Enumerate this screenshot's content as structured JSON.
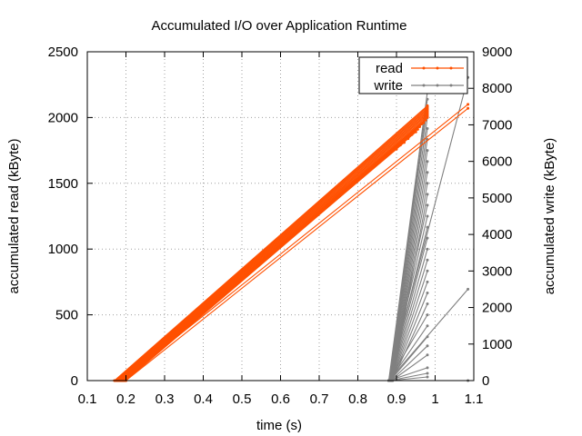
{
  "chart_data": {
    "type": "line",
    "title": "Accumulated I/O over Application Runtime",
    "xlabel": "time (s)",
    "ylabel": "accumulated read  (kByte)",
    "y2label": "accumulated write (kByte)",
    "xlim": [
      0.1,
      1.1
    ],
    "ylim": [
      0,
      2500
    ],
    "y2lim": [
      0,
      9000
    ],
    "xticks": [
      0.1,
      0.2,
      0.3,
      0.4,
      0.5,
      0.6,
      0.7,
      0.8,
      0.9,
      1,
      1.1
    ],
    "xtick_labels": [
      "0.1",
      "0.2",
      "0.3",
      "0.4",
      "0.5",
      "0.6",
      "0.7",
      "0.8",
      "0.9",
      "1",
      "1.1"
    ],
    "yticks": [
      0,
      500,
      1000,
      1500,
      2000,
      2500
    ],
    "ytick_labels": [
      "0",
      "500",
      "1000",
      "1500",
      "2000",
      "2500"
    ],
    "y2ticks": [
      0,
      1000,
      2000,
      3000,
      4000,
      5000,
      6000,
      7000,
      8000,
      9000
    ],
    "y2tick_labels": [
      "0",
      "1000",
      "2000",
      "3000",
      "4000",
      "5000",
      "6000",
      "7000",
      "8000",
      "9000"
    ],
    "grid": true,
    "legend_position": "top-right",
    "series": [
      {
        "name": "read",
        "axis": "left",
        "color": "#ff5000",
        "lines": [
          [
            [
              0.17,
              0
            ],
            [
              0.98,
              2090
            ]
          ],
          [
            [
              0.172,
              0
            ],
            [
              0.98,
              2080
            ]
          ],
          [
            [
              0.174,
              0
            ],
            [
              0.98,
              2070
            ]
          ],
          [
            [
              0.176,
              0
            ],
            [
              0.98,
              2060
            ]
          ],
          [
            [
              0.178,
              0
            ],
            [
              0.98,
              2050
            ]
          ],
          [
            [
              0.18,
              0
            ],
            [
              0.98,
              2040
            ]
          ],
          [
            [
              0.182,
              0
            ],
            [
              0.98,
              2030
            ]
          ],
          [
            [
              0.184,
              0
            ],
            [
              0.98,
              2020
            ]
          ],
          [
            [
              0.186,
              0
            ],
            [
              0.98,
              2010
            ]
          ],
          [
            [
              0.188,
              0
            ],
            [
              0.98,
              2000
            ]
          ],
          [
            [
              0.19,
              0
            ],
            [
              0.975,
              1980
            ]
          ],
          [
            [
              0.192,
              0
            ],
            [
              0.97,
              1960
            ]
          ],
          [
            [
              0.194,
              0
            ],
            [
              0.965,
              1950
            ]
          ],
          [
            [
              0.196,
              0
            ],
            [
              0.96,
              1930
            ]
          ],
          [
            [
              0.198,
              0
            ],
            [
              0.955,
              1910
            ]
          ],
          [
            [
              0.2,
              0
            ],
            [
              0.95,
              1890
            ]
          ],
          [
            [
              0.178,
              0
            ],
            [
              0.94,
              1870
            ]
          ],
          [
            [
              0.182,
              0
            ],
            [
              0.93,
              1840
            ]
          ],
          [
            [
              0.186,
              0
            ],
            [
              0.92,
              1810
            ]
          ],
          [
            [
              0.19,
              0
            ],
            [
              0.91,
              1790
            ]
          ],
          [
            [
              0.194,
              0
            ],
            [
              0.9,
              1760
            ]
          ],
          [
            [
              0.19,
              0
            ],
            [
              1.085,
              2100
            ]
          ],
          [
            [
              0.2,
              0
            ],
            [
              1.085,
              2070
            ]
          ]
        ]
      },
      {
        "name": "write",
        "axis": "right",
        "color": "#808080",
        "lines": [
          [
            [
              0.88,
              0
            ],
            [
              0.98,
              7900
            ]
          ],
          [
            [
              0.881,
              0
            ],
            [
              0.98,
              7700
            ]
          ],
          [
            [
              0.882,
              0
            ],
            [
              0.98,
              7500
            ]
          ],
          [
            [
              0.883,
              0
            ],
            [
              0.98,
              7200
            ]
          ],
          [
            [
              0.884,
              0
            ],
            [
              0.98,
              6900
            ]
          ],
          [
            [
              0.885,
              0
            ],
            [
              0.98,
              6600
            ]
          ],
          [
            [
              0.886,
              0
            ],
            [
              0.98,
              6300
            ]
          ],
          [
            [
              0.887,
              0
            ],
            [
              0.98,
              6000
            ]
          ],
          [
            [
              0.888,
              0
            ],
            [
              0.98,
              5700
            ]
          ],
          [
            [
              0.889,
              0
            ],
            [
              0.98,
              5400
            ]
          ],
          [
            [
              0.89,
              0
            ],
            [
              0.98,
              5100
            ]
          ],
          [
            [
              0.88,
              0
            ],
            [
              0.98,
              4800
            ]
          ],
          [
            [
              0.881,
              0
            ],
            [
              0.98,
              4500
            ]
          ],
          [
            [
              0.882,
              0
            ],
            [
              0.98,
              4200
            ]
          ],
          [
            [
              0.883,
              0
            ],
            [
              0.98,
              3900
            ]
          ],
          [
            [
              0.884,
              0
            ],
            [
              0.98,
              3600
            ]
          ],
          [
            [
              0.885,
              0
            ],
            [
              0.98,
              3300
            ]
          ],
          [
            [
              0.886,
              0
            ],
            [
              0.98,
              3000
            ]
          ],
          [
            [
              0.887,
              0
            ],
            [
              0.98,
              2700
            ]
          ],
          [
            [
              0.888,
              0
            ],
            [
              0.98,
              2400
            ]
          ],
          [
            [
              0.889,
              0
            ],
            [
              0.98,
              2100
            ]
          ],
          [
            [
              0.88,
              0
            ],
            [
              0.98,
              1800
            ]
          ],
          [
            [
              0.882,
              0
            ],
            [
              0.98,
              1500
            ]
          ],
          [
            [
              0.884,
              0
            ],
            [
              0.98,
              1200
            ]
          ],
          [
            [
              0.886,
              0
            ],
            [
              0.98,
              950
            ]
          ],
          [
            [
              0.888,
              0
            ],
            [
              0.98,
              700
            ]
          ],
          [
            [
              0.88,
              0
            ],
            [
              0.98,
              350
            ]
          ],
          [
            [
              0.882,
              0
            ],
            [
              0.98,
              200
            ]
          ],
          [
            [
              0.885,
              0
            ],
            [
              0.98,
              100
            ]
          ],
          [
            [
              0.88,
              0
            ],
            [
              1.085,
              8300
            ]
          ],
          [
            [
              0.88,
              0
            ],
            [
              1.085,
              2500
            ]
          ],
          [
            [
              0.88,
              0
            ],
            [
              1.085,
              0
            ]
          ]
        ]
      }
    ]
  }
}
